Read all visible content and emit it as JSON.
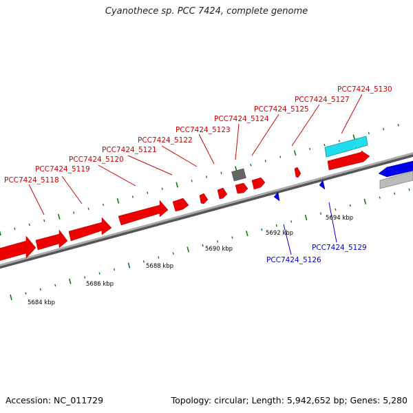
{
  "title": "Cyanothece sp. PCC 7424, complete genome",
  "footer": {
    "accession": "Accession: NC_011729",
    "summary": "Topology: circular; Length: 5,942,652 bp; Genes: 5,280"
  },
  "colors": {
    "forward_gene": "#ee0000",
    "reverse_gene": "#0000ee",
    "rna_gene": "#22ddee",
    "pseudo_gene": "#666666",
    "backbone": "#888888",
    "tick": "#117711"
  },
  "kbp_labels": [
    "5684 kbp",
    "5686 kbp",
    "5688 kbp",
    "5690 kbp",
    "5692 kbp",
    "5694 kbp"
  ],
  "forward_labels": [
    "PCC7424_5118",
    "PCC7424_5119",
    "PCC7424_5120",
    "PCC7424_5121",
    "PCC7424_5122",
    "PCC7424_5123",
    "PCC7424_5124",
    "PCC7424_5125",
    "PCC7424_5127",
    "PCC7424_5130"
  ],
  "reverse_labels": [
    "PCC7424_5126",
    "PCC7424_5129"
  ]
}
